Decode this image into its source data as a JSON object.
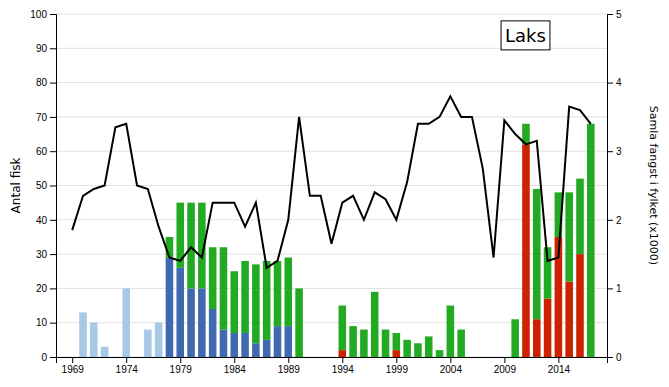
{
  "chart_data": {
    "type": "bar",
    "stacked": true,
    "grid": true,
    "ylabel": "Antal fisk",
    "y2label": "Samla fangst i fylket (x1000)",
    "annotation": "Laks",
    "x": [
      1969,
      1970,
      1971,
      1972,
      1973,
      1974,
      1975,
      1976,
      1977,
      1978,
      1979,
      1980,
      1981,
      1982,
      1983,
      1984,
      1985,
      1986,
      1987,
      1988,
      1989,
      1990,
      1991,
      1992,
      1993,
      1994,
      1995,
      1996,
      1997,
      1998,
      1999,
      2000,
      2001,
      2002,
      2003,
      2004,
      2005,
      2006,
      2007,
      2008,
      2009,
      2010,
      2011,
      2012,
      2013,
      2014,
      2015,
      2016,
      2017
    ],
    "xlim": [
      1967.5,
      2018.5
    ],
    "xticks": [
      1969,
      1974,
      1979,
      1984,
      1989,
      1994,
      1999,
      2004,
      2009,
      2014
    ],
    "ylim": [
      0,
      100
    ],
    "yticks": [
      0,
      10,
      20,
      30,
      40,
      50,
      60,
      70,
      80,
      90,
      100
    ],
    "y2lim": [
      0,
      5
    ],
    "y2ticks": [
      0,
      1,
      2,
      3,
      4,
      5
    ],
    "series": [
      {
        "type": "bar",
        "color": "#a8c8e8",
        "values": [
          0,
          13,
          10,
          3,
          0,
          20,
          0,
          8,
          10,
          0,
          0,
          0,
          0,
          0,
          0,
          0,
          0,
          0,
          0,
          0,
          0,
          0,
          0,
          0,
          0,
          0,
          0,
          0,
          0,
          0,
          0,
          0,
          0,
          0,
          0,
          0,
          0,
          0,
          0,
          0,
          0,
          0,
          0,
          0,
          0,
          0,
          0,
          0,
          0
        ]
      },
      {
        "type": "bar",
        "color": "#4169b0",
        "values": [
          0,
          0,
          0,
          0,
          0,
          0,
          0,
          0,
          0,
          29,
          26,
          20,
          20,
          14,
          8,
          7,
          7,
          4,
          5,
          9,
          9,
          0,
          0,
          0,
          0,
          0,
          0,
          0,
          0,
          0,
          0,
          0,
          0,
          0,
          0,
          0,
          0,
          0,
          0,
          0,
          0,
          0,
          0,
          0,
          0,
          0,
          0,
          0,
          0
        ]
      },
      {
        "type": "bar",
        "color": "#22aa22",
        "values": [
          0,
          0,
          0,
          0,
          0,
          0,
          0,
          0,
          0,
          6,
          19,
          25,
          25,
          18,
          24,
          18,
          21,
          23,
          23,
          19,
          20,
          20,
          0,
          0,
          0,
          0,
          0,
          0,
          0,
          0,
          0,
          0,
          0,
          0,
          0,
          0,
          0,
          0,
          0,
          0,
          0,
          0,
          0,
          0,
          0,
          0,
          0,
          0,
          0
        ]
      },
      {
        "type": "bar",
        "color": "#cc2200",
        "values": [
          0,
          0,
          0,
          0,
          0,
          0,
          0,
          0,
          0,
          0,
          0,
          0,
          0,
          0,
          0,
          0,
          0,
          0,
          0,
          0,
          0,
          0,
          0,
          0,
          0,
          2,
          0,
          0,
          0,
          0,
          2,
          0,
          0,
          0,
          0,
          0,
          0,
          0,
          0,
          0,
          0,
          0,
          62,
          11,
          17,
          35,
          22,
          30,
          0
        ]
      },
      {
        "type": "bar",
        "color": "#22aa22",
        "values": [
          0,
          0,
          0,
          0,
          0,
          0,
          0,
          0,
          0,
          0,
          0,
          0,
          0,
          0,
          0,
          0,
          0,
          0,
          0,
          0,
          0,
          0,
          0,
          0,
          0,
          13,
          9,
          8,
          19,
          8,
          5,
          5,
          4,
          6,
          2,
          15,
          8,
          0,
          0,
          0,
          0,
          11,
          6,
          38,
          15,
          13,
          26,
          22,
          68
        ]
      },
      {
        "type": "line",
        "color": "#000000",
        "values": [
          37,
          47,
          49,
          50,
          67,
          68,
          50,
          49,
          38,
          29,
          28,
          32,
          29,
          45,
          45,
          45,
          38,
          45,
          26,
          28,
          40,
          70,
          47,
          47,
          33,
          45,
          47,
          40,
          48,
          46,
          40,
          51,
          68,
          68,
          70,
          76,
          70,
          70,
          55,
          29,
          69,
          65,
          62,
          63,
          28,
          29,
          73,
          72,
          68
        ]
      }
    ]
  }
}
